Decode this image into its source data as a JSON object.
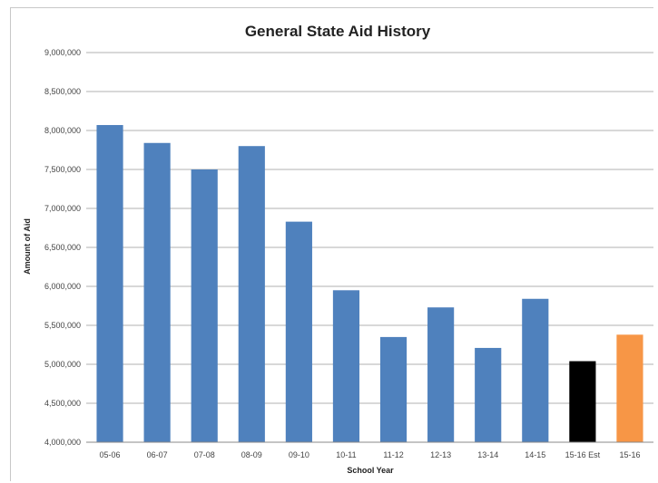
{
  "chart_data": {
    "type": "bar",
    "title": "General State Aid History",
    "xlabel": "School Year",
    "ylabel": "Amount of Aid",
    "ylim": [
      4000000,
      9000000
    ],
    "yticks": [
      4000000,
      4500000,
      5000000,
      5500000,
      6000000,
      6500000,
      7000000,
      7500000,
      8000000,
      8500000,
      9000000
    ],
    "ytick_labels": [
      "4,000,000",
      "4,500,000",
      "5,000,000",
      "5,500,000",
      "6,000,000",
      "6,500,000",
      "7,000,000",
      "7,500,000",
      "8,000,000",
      "8,500,000",
      "9,000,000"
    ],
    "categories": [
      "05-06",
      "06-07",
      "07-08",
      "08-09",
      "09-10",
      "10-11",
      "11-12",
      "12-13",
      "13-14",
      "14-15",
      "15-16 Est",
      "15-16"
    ],
    "values": [
      8070000,
      7840000,
      7500000,
      7800000,
      6830000,
      5950000,
      5350000,
      5730000,
      5210000,
      5840000,
      5040000,
      5380000
    ],
    "colors": [
      "#4f81bd",
      "#4f81bd",
      "#4f81bd",
      "#4f81bd",
      "#4f81bd",
      "#4f81bd",
      "#4f81bd",
      "#4f81bd",
      "#4f81bd",
      "#4f81bd",
      "#000000",
      "#f79646"
    ],
    "grid": true
  }
}
